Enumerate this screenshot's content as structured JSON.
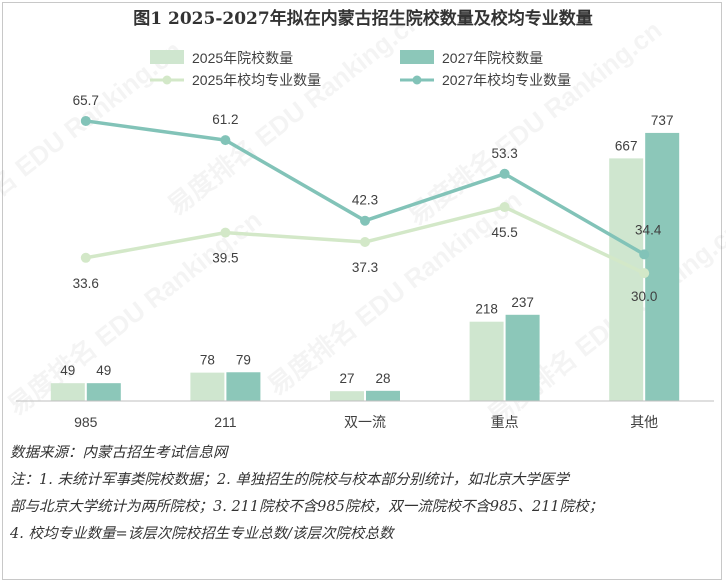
{
  "chart_data": {
    "type": "bar",
    "title": "图1 2025-2027年拟在内蒙古招生院校数量及校均专业数量",
    "categories": [
      "985",
      "211",
      "双一流",
      "重点",
      "其他"
    ],
    "series": [
      {
        "name": "2025年院校数量",
        "kind": "bar",
        "color": "#cfe6cf",
        "values": [
          49,
          78,
          27,
          218,
          667
        ]
      },
      {
        "name": "2027年院校数量",
        "kind": "bar",
        "color": "#8cc7b9",
        "values": [
          49,
          79,
          28,
          237,
          737
        ]
      },
      {
        "name": "2025年校均专业数量",
        "kind": "line",
        "color": "#d3e8c8",
        "values": [
          33.6,
          39.5,
          37.3,
          45.5,
          30.0
        ]
      },
      {
        "name": "2027年校均专业数量",
        "kind": "line",
        "color": "#82c3b8",
        "values": [
          65.7,
          61.2,
          42.3,
          53.3,
          34.4
        ]
      }
    ],
    "bar_ylim": [
      0,
      800
    ],
    "line_ylim": [
      0,
      80
    ],
    "legend_position": "top",
    "grid": false
  },
  "watermark": "易度排名 EDU Ranking.cn",
  "notes": {
    "source": "数据来源：内蒙古招生考试信息网",
    "line1": "注：1. 未统计军事类院校数据；2. 单独招生的院校与校本部分别统计，如北京大学医学",
    "line2": "部与北京大学统计为两所院校；3. 211院校不含985院校，双一流院校不含985、211院校；",
    "line3": "4. 校均专业数量=该层次院校招生专业总数/该层次院校总数"
  }
}
